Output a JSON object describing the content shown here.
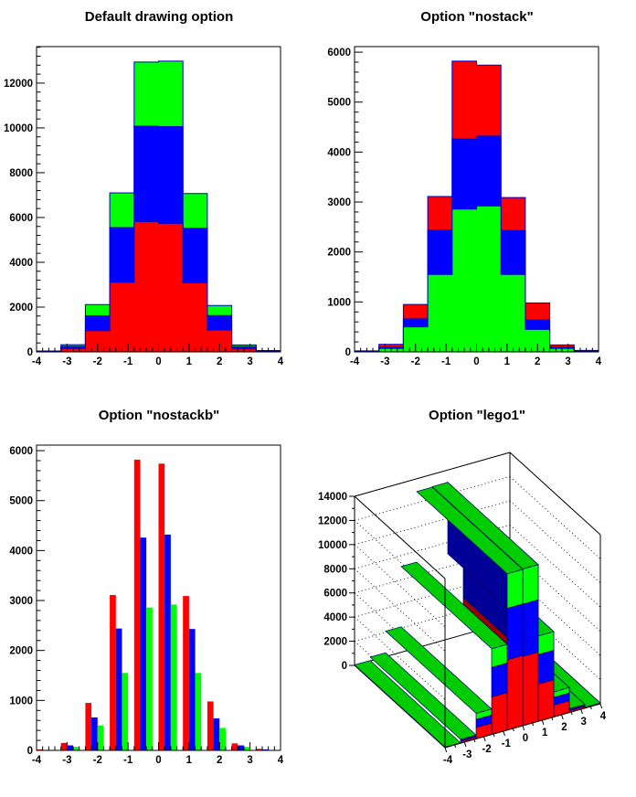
{
  "window": {
    "background": "#ffffff"
  },
  "style": {
    "hist_line_color": "#0000cc",
    "frame_color": "#000000",
    "lego_edge_color": "#000066",
    "grid_color": "#000000",
    "text_color": "#000000"
  },
  "chart_data": {
    "type": "bar",
    "description": "THStack drawing options: three gaussian histograms (red, blue, green) shown stacked, overlaid (nostack), side-by-side bars (nostackb) and as 3D stacked lego (lego1)",
    "bin_edges": [
      -4,
      -3.2,
      -2.4,
      -1.6,
      -0.8,
      0,
      0.8,
      1.6,
      2.4,
      3.2,
      4
    ],
    "x_ticks": [
      -4,
      -3,
      -2,
      -1,
      0,
      1,
      2,
      3,
      4
    ],
    "xlim": [
      -4,
      4
    ],
    "series": [
      {
        "name": "hist-red",
        "color": "#ff0000",
        "values": [
          20,
          150,
          950,
          3110,
          5820,
          5740,
          3090,
          980,
          140,
          30
        ]
      },
      {
        "name": "hist-blue",
        "color": "#0000ff",
        "values": [
          10,
          100,
          660,
          2440,
          4260,
          4320,
          2430,
          640,
          100,
          20
        ]
      },
      {
        "name": "hist-green",
        "color": "#00ff00",
        "values": [
          10,
          70,
          500,
          1550,
          2860,
          2920,
          1550,
          450,
          70,
          10
        ]
      }
    ],
    "charts": [
      {
        "panel": "top-left",
        "title": "Default drawing option",
        "mode": "stacked",
        "ylim": [
          0,
          13629
        ],
        "y_ticks": [
          0,
          2000,
          4000,
          6000,
          8000,
          10000,
          12000
        ],
        "y_minor_step": 400,
        "x_minor_step": 0.2,
        "grid": false,
        "legend": false
      },
      {
        "panel": "top-right",
        "title": "Option \"nostack\"",
        "mode": "overlay",
        "ylim": [
          0,
          6111
        ],
        "y_ticks": [
          0,
          1000,
          2000,
          3000,
          4000,
          5000,
          6000
        ],
        "y_minor_step": 200,
        "x_minor_step": 0.2,
        "grid": false,
        "legend": false
      },
      {
        "panel": "bottom-left",
        "title": "Option \"nostackb\"",
        "mode": "grouped",
        "ylim": [
          0,
          6111
        ],
        "y_ticks": [
          0,
          1000,
          2000,
          3000,
          4000,
          5000,
          6000
        ],
        "y_minor_step": 200,
        "x_minor_step": 0.2,
        "grid": false,
        "legend": false
      },
      {
        "panel": "bottom-right",
        "title": "Option \"lego1\"",
        "mode": "lego3d",
        "zlim": [
          0,
          14000
        ],
        "z_ticks": [
          0,
          2000,
          4000,
          6000,
          8000,
          10000,
          12000,
          14000
        ],
        "z_minor_step": 1000,
        "x_minor_step": 0.5,
        "grid": "dotted-z",
        "legend": false
      }
    ]
  }
}
